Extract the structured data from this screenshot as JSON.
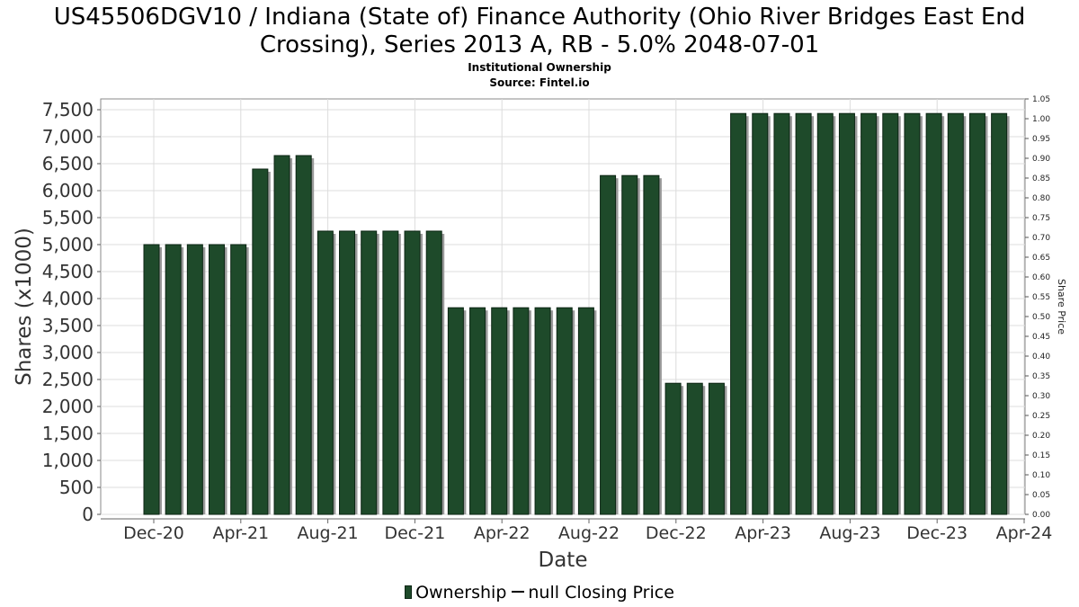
{
  "title": "US45506DGV10 / Indiana (State of) Finance Authority (Ohio River Bridges East End\nCrossing), Series 2013 A, RB - 5.0% 2048-07-01",
  "subtitle": "Institutional Ownership",
  "source": "Source: Fintel.io",
  "legend": {
    "ownership": "Ownership",
    "price": "null Closing Price"
  },
  "colors": {
    "bar": "#1e4a2a",
    "bar_edge": "#0c2514",
    "bar_shadow": "#9a9a9a",
    "grid": "#dcdcdc",
    "axis": "#888888"
  },
  "chart_data": {
    "type": "bar",
    "xlabel": "Date",
    "ylabel": "Shares (x1000)",
    "y2label": "Share Price",
    "ylim": [
      0,
      7700
    ],
    "y2lim": [
      0,
      1.05
    ],
    "yticks": [
      "0",
      "500",
      "1,000",
      "1,500",
      "2,000",
      "2,500",
      "3,000",
      "3,500",
      "4,000",
      "4,500",
      "5,000",
      "5,500",
      "6,000",
      "6,500",
      "7,000",
      "7,500"
    ],
    "y2ticks": [
      "0.00",
      "0.05",
      "0.10",
      "0.15",
      "0.20",
      "0.25",
      "0.30",
      "0.35",
      "0.40",
      "0.45",
      "0.50",
      "0.55",
      "0.60",
      "0.65",
      "0.70",
      "0.75",
      "0.80",
      "0.85",
      "0.90",
      "0.95",
      "1.00",
      "1.05"
    ],
    "xticks": [
      "Dec-20",
      "Apr-21",
      "Aug-21",
      "Dec-21",
      "Apr-22",
      "Aug-22",
      "Dec-22",
      "Apr-23",
      "Aug-23",
      "Dec-23",
      "Apr-24"
    ],
    "grid": true,
    "legend_position": "bottom",
    "series": [
      {
        "name": "Ownership",
        "values": [
          5000,
          5000,
          5000,
          5000,
          5000,
          6400,
          6650,
          6650,
          5250,
          5250,
          5250,
          5250,
          5250,
          5250,
          3830,
          3830,
          3830,
          3830,
          3830,
          3830,
          3830,
          6280,
          6280,
          6280,
          2430,
          2430,
          2430,
          7430,
          7430,
          7430,
          7430,
          7430,
          7430,
          7430,
          7430,
          7430,
          7430,
          7430,
          7430,
          7430
        ]
      }
    ]
  }
}
